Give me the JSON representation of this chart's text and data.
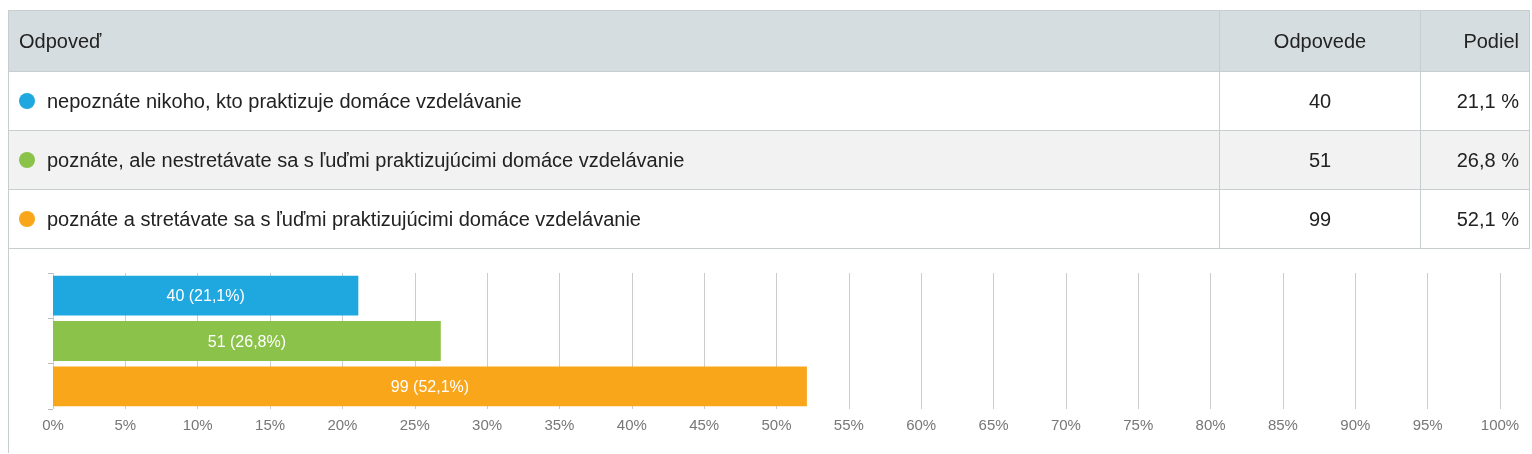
{
  "chart_data": {
    "type": "bar",
    "orientation": "horizontal",
    "stacked": true,
    "categories": [
      null,
      null,
      null
    ],
    "series": [
      {
        "name": "nepoznáte nikoho, kto praktizuje domáce vzdelávanie",
        "color": "#1fa8e0",
        "values": [
          21.1,
          null,
          null
        ],
        "value_labels": [
          "40 (21,1%)",
          null,
          null
        ]
      },
      {
        "name": "poznáte, ale nestretávate sa s ľuďmi praktizujúcimi domáce vzdelávanie",
        "color": "#8bc34a",
        "values": [
          null,
          26.8,
          null
        ],
        "value_labels": [
          null,
          "51 (26,8%)",
          null
        ]
      },
      {
        "name": "poznáte a stretávate sa s ľuďmi praktizujúcimi domáce vzdelávanie",
        "color": "#faa61a",
        "values": [
          null,
          null,
          52.1
        ],
        "value_labels": [
          null,
          null,
          "99 (52,1%)"
        ]
      }
    ],
    "annotations": [
      "Odpoveď",
      "Odpovede",
      "Podiel",
      "40",
      "21,1 %",
      "51",
      "26,8 %",
      "99",
      "52,1 %"
    ],
    "xlim": [
      0,
      100
    ],
    "xticks": [
      {
        "value": 0,
        "label": "0%"
      },
      {
        "value": 5,
        "label": "5%"
      },
      {
        "value": 10,
        "label": "10%"
      },
      {
        "value": 15,
        "label": "15%"
      },
      {
        "value": 20,
        "label": "20%"
      },
      {
        "value": 25,
        "label": "25%"
      },
      {
        "value": 30,
        "label": "30%"
      },
      {
        "value": 35,
        "label": "35%"
      },
      {
        "value": 40,
        "label": "40%"
      },
      {
        "value": 45,
        "label": "45%"
      },
      {
        "value": 50,
        "label": "50%"
      },
      {
        "value": 55,
        "label": "55%"
      },
      {
        "value": 60,
        "label": "60%"
      },
      {
        "value": 65,
        "label": "65%"
      },
      {
        "value": 70,
        "label": "70%"
      },
      {
        "value": 75,
        "label": "75%"
      },
      {
        "value": 80,
        "label": "80%"
      },
      {
        "value": 85,
        "label": "85%"
      },
      {
        "value": 90,
        "label": "90%"
      },
      {
        "value": 95,
        "label": "95%"
      },
      {
        "value": 100,
        "label": "100%"
      }
    ],
    "grid": "x",
    "tick_labels": "x",
    "legend": "top"
  }
}
